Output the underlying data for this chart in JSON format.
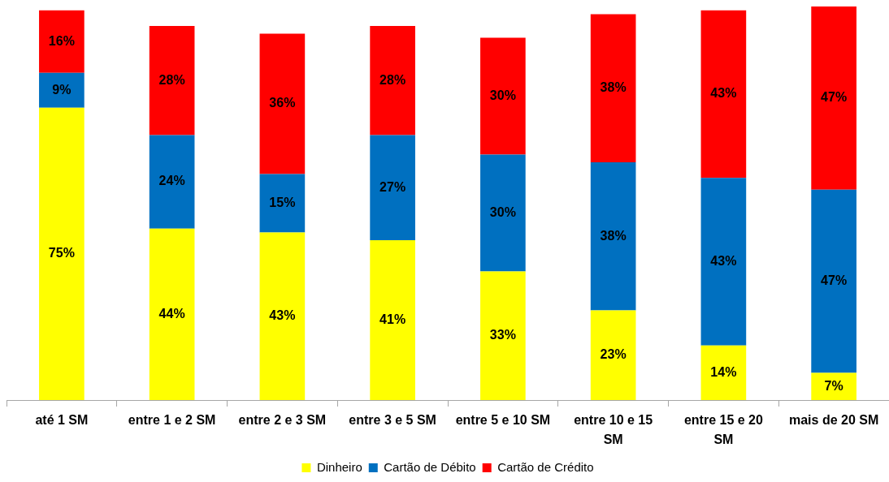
{
  "chart_data": {
    "type": "bar",
    "stacked": true,
    "legend": "bottom",
    "grid": false,
    "tick_labels": "x",
    "categories": [
      "até 1 SM",
      "entre 1 e 2 SM",
      "entre 2 e 3 SM",
      "entre 3 e 5 SM",
      "entre 5 e 10 SM",
      "entre 10 e 15 SM",
      "entre 15 e 20 SM",
      "mais de 20 SM"
    ],
    "series": [
      {
        "name": "Dinheiro",
        "color": "#ffff00",
        "values": [
          75,
          44,
          43,
          41,
          33,
          23,
          14,
          7
        ],
        "value_labels": [
          "75%",
          "44%",
          "43%",
          "41%",
          "33%",
          "23%",
          "14%",
          "7%"
        ]
      },
      {
        "name": "Cartão de Débito",
        "color": "#0070c0",
        "values": [
          9,
          24,
          15,
          27,
          30,
          38,
          43,
          47
        ],
        "value_labels": [
          "9%",
          "24%",
          "15%",
          "27%",
          "30%",
          "38%",
          "43%",
          "47%"
        ]
      },
      {
        "name": "Cartão de Crédito",
        "color": "#ff0000",
        "values": [
          16,
          28,
          36,
          28,
          30,
          38,
          43,
          47
        ],
        "value_labels": [
          "16%",
          "28%",
          "36%",
          "28%",
          "30%",
          "38%",
          "43%",
          "47%"
        ]
      }
    ]
  }
}
